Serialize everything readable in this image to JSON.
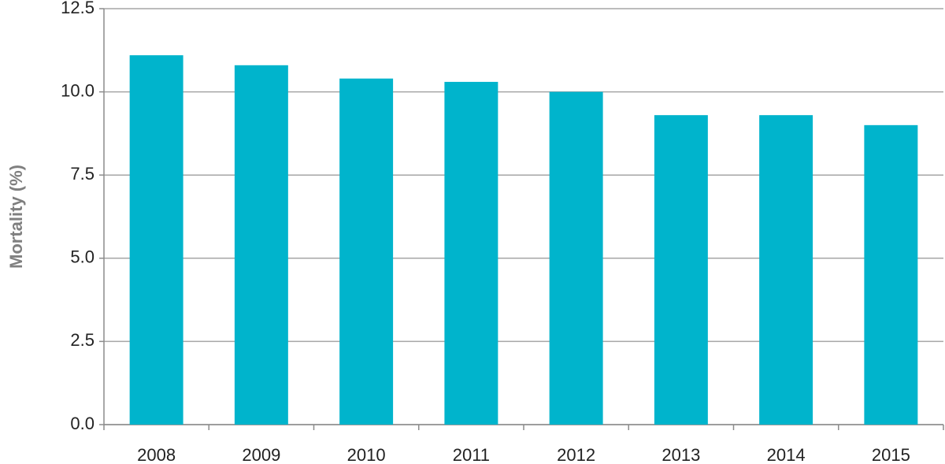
{
  "chart_data": {
    "type": "bar",
    "y_label": "Mortality (%)",
    "categories": [
      "2008",
      "2009",
      "2010",
      "2011",
      "2012",
      "2013",
      "2014",
      "2015"
    ],
    "values": [
      11.1,
      10.8,
      10.4,
      10.3,
      10.0,
      9.3,
      9.3,
      9.0
    ],
    "color": "#00b4cc",
    "ylim": [
      0,
      12.5
    ],
    "yticks": [
      {
        "value": 0,
        "label": "0.0"
      },
      2.5,
      {
        "value": 5,
        "label": "5.0"
      },
      7.5,
      {
        "value": 10,
        "label": "10.0"
      },
      12.5
    ],
    "grid": true
  }
}
